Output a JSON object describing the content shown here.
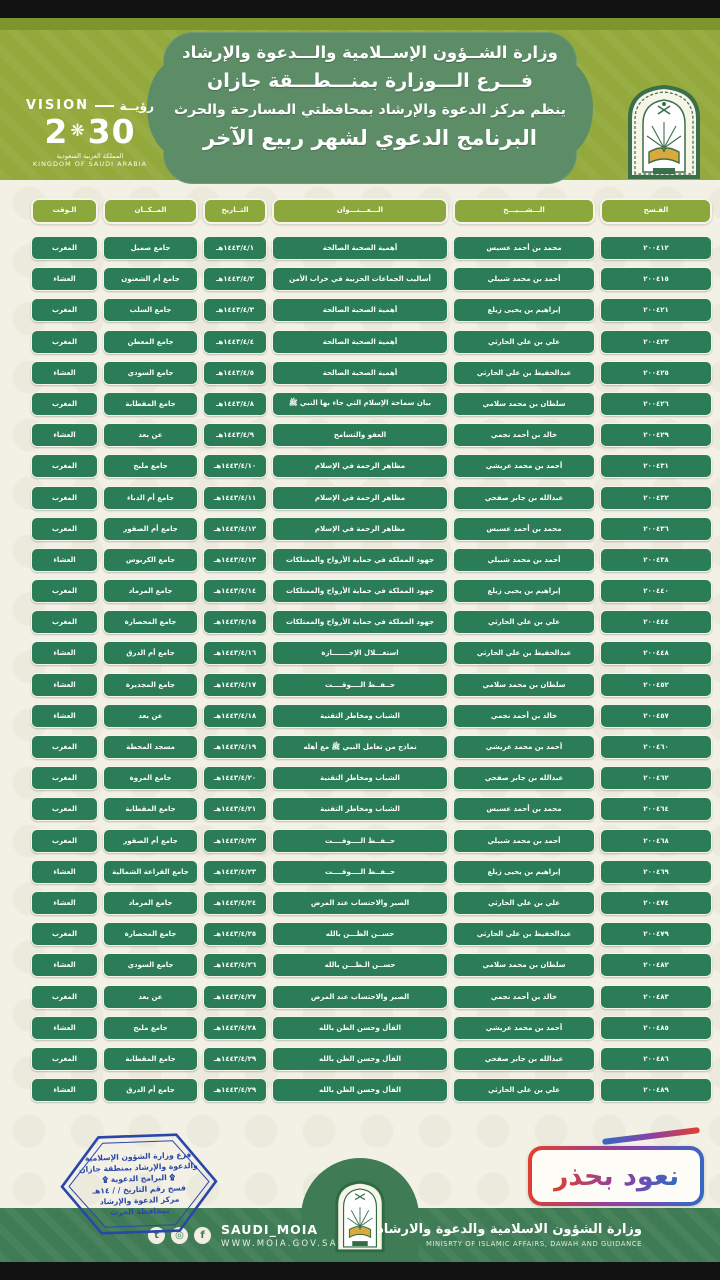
{
  "header": {
    "ministry_line": "وزارة الشــؤون الإســلامية والـــدعوة والإرشاد",
    "branch_line": "فـــرع الـــوزارة بمنـــطـــقة جازان",
    "organizer_line": "ينظم مركز الدعوة والإرشاد بمحافظتي المسارحة والحرث",
    "program_title": "البرنامج الدعوي لشهر ربيع الآخر",
    "vision_logo": {
      "vision_en": "VISION",
      "vision_ar": "رؤيــة",
      "year_left": "2",
      "year_right": "30",
      "star": "❋",
      "kingdom_ar": "المملكة العربية السعودية",
      "kingdom_en": "KINGDOM OF SAUDI ARABIA"
    }
  },
  "table": {
    "columns": [
      {
        "key": "permit",
        "label": "الفـسح"
      },
      {
        "key": "sheikh",
        "label": "الـــشـــيـــخ"
      },
      {
        "key": "topic",
        "label": "الـــعـــنـــوان"
      },
      {
        "key": "date",
        "label": "التــاريخ"
      },
      {
        "key": "place",
        "label": "المــكــان"
      },
      {
        "key": "time",
        "label": "الـوقت"
      }
    ],
    "rows": [
      {
        "permit": "٢٠٠٤١٢",
        "sheikh": "محمد بن أحمد عسيس",
        "topic": "أهمية الصحبة الصالحة",
        "date": "١٤٤٣/٤/١هـ",
        "place": "جامع صميل",
        "time": "المغرب"
      },
      {
        "permit": "٢٠٠٤١٥",
        "sheikh": "أحمد بن محمد شبيلي",
        "topic": "أساليب الجماعات الحزبية في خراب الأمن",
        "date": "١٤٤٣/٤/٢هـ",
        "place": "جامع أم الشعنون",
        "time": "العشاء"
      },
      {
        "permit": "٢٠٠٤٢١",
        "sheikh": "إبراهيم بن يحيى زيلع",
        "topic": "أهمية الصحبة الصالحة",
        "date": "١٤٤٣/٤/٣هـ",
        "place": "جامع السلب",
        "time": "المغرب"
      },
      {
        "permit": "٢٠٠٤٢٣",
        "sheikh": "علي بن علي الحارثي",
        "topic": "أهمية الصحبة الصالحة",
        "date": "١٤٤٣/٤/٤هـ",
        "place": "جامع المعطن",
        "time": "المغرب"
      },
      {
        "permit": "٢٠٠٤٢٥",
        "sheikh": "عبدالحفيظ بن علي الحارثي",
        "topic": "أهمية الصحبة الصالحة",
        "date": "١٤٤٣/٤/٥هـ",
        "place": "جامع السودي",
        "time": "العشاء"
      },
      {
        "permit": "٢٠٠٤٢٦",
        "sheikh": "سلطان بن محمد سلامي",
        "topic": "بيان سماحة الإسلام التي جاء بها النبي ﷺ",
        "date": "١٤٤٣/٤/٨هـ",
        "place": "جامع المقطابة",
        "time": "المغرب"
      },
      {
        "permit": "٢٠٠٤٢٩",
        "sheikh": "خالد بن أحمد نجمي",
        "topic": "العفو والتسامح",
        "date": "١٤٤٣/٤/٩هـ",
        "place": "عن بعد",
        "time": "العشاء"
      },
      {
        "permit": "٢٠٠٤٣١",
        "sheikh": "أحمد بن محمد عريشي",
        "topic": "مظاهر الرحمة في الإسلام",
        "date": "١٤٤٣/٤/١٠هـ",
        "place": "جامع ملبج",
        "time": "المغرب"
      },
      {
        "permit": "٢٠٠٤٣٢",
        "sheikh": "عبدالله بن جابر صفحي",
        "topic": "مظاهر الرحمة في الإسلام",
        "date": "١٤٤٣/٤/١١هـ",
        "place": "جامع أم الدباء",
        "time": "المغرب"
      },
      {
        "permit": "٢٠٠٤٣٦",
        "sheikh": "محمد بن أحمد عسيس",
        "topic": "مظاهر الرحمة في الإسلام",
        "date": "١٤٤٣/٤/١٢هـ",
        "place": "جامع أم الصقور",
        "time": "المغرب"
      },
      {
        "permit": "٢٠٠٤٣٨",
        "sheikh": "أحمد بن محمد شبيلي",
        "topic": "جهود المملكة في حماية الأرواح والممتلكات",
        "date": "١٤٤٣/٤/١٣هـ",
        "place": "جامع الكربوس",
        "time": "العشاء"
      },
      {
        "permit": "٢٠٠٤٤٠",
        "sheikh": "إبراهيم بن يحيى زيلع",
        "topic": "جهود المملكة في حماية الأرواح والممتلكات",
        "date": "١٤٤٣/٤/١٤هـ",
        "place": "جامع المرماد",
        "time": "المغرب"
      },
      {
        "permit": "٢٠٠٤٤٤",
        "sheikh": "علي بن علي الحارثي",
        "topic": "جهود المملكة في حماية الأرواح والممتلكات",
        "date": "١٤٤٣/٤/١٥هـ",
        "place": "جامع المحصارة",
        "time": "المغرب"
      },
      {
        "permit": "٢٠٠٤٤٨",
        "sheikh": "عبدالحفيظ بن علي الحارثي",
        "topic": "استغـــلال الإجـــــــازة",
        "date": "١٤٤٣/٤/١٦هـ",
        "place": "جامع أم الدرق",
        "time": "العشاء"
      },
      {
        "permit": "٢٠٠٤٥٢",
        "sheikh": "سلطان بن محمد سلامي",
        "topic": "حــفــظ الــــوقــــت",
        "date": "١٤٤٣/٤/١٧هـ",
        "place": "جامع المجديرة",
        "time": "العشاء"
      },
      {
        "permit": "٢٠٠٤٥٧",
        "sheikh": "خالد بن أحمد نجمي",
        "topic": "الشباب ومخاطر التقنية",
        "date": "١٤٤٣/٤/١٨هـ",
        "place": "عن بعد",
        "time": "العشاء"
      },
      {
        "permit": "٢٠٠٤٦٠",
        "sheikh": "أحمد بن محمد عريشي",
        "topic": "نماذج من تعامل النبي ﷺ مع أهله",
        "date": "١٤٤٣/٤/١٩هـ",
        "place": "مسجد المحطة",
        "time": "المغرب"
      },
      {
        "permit": "٢٠٠٤٦٢",
        "sheikh": "عبدالله بن جابر صفحي",
        "topic": "الشباب ومخاطر التقنية",
        "date": "١٤٤٣/٤/٢٠هـ",
        "place": "جامع المروة",
        "time": "المغرب"
      },
      {
        "permit": "٢٠٠٤٦٤",
        "sheikh": "محمد بن أحمد عسيس",
        "topic": "الشباب ومخاطر التقنية",
        "date": "١٤٤٣/٤/٢١هـ",
        "place": "جامع المقطابة",
        "time": "المغرب"
      },
      {
        "permit": "٢٠٠٤٦٨",
        "sheikh": "أحمد بن محمد شبيلي",
        "topic": "حــفــظ الــــوقــــت",
        "date": "١٤٤٣/٤/٢٢هـ",
        "place": "جامع أم الصقور",
        "time": "المغرب"
      },
      {
        "permit": "٢٠٠٤٦٩",
        "sheikh": "إبراهيم بن يحيى زيلع",
        "topic": "حــفــظ الــــوقــــت",
        "date": "١٤٤٣/٤/٢٣هـ",
        "place": "جامع القراعة الشمالية",
        "time": "العشاء"
      },
      {
        "permit": "٢٠٠٤٧٤",
        "sheikh": "علي بن علي الحارثي",
        "topic": "الصبر والاحتساب عند المرض",
        "date": "١٤٤٣/٤/٢٤هـ",
        "place": "جامع المرماد",
        "time": "العشاء"
      },
      {
        "permit": "٢٠٠٤٧٩",
        "sheikh": "عبدالحفيظ بن علي الحارثي",
        "topic": "حســن الظـــن بالله",
        "date": "١٤٤٣/٤/٢٥هـ",
        "place": "جامع المحصارة",
        "time": "المغرب"
      },
      {
        "permit": "٢٠٠٤٨٢",
        "sheikh": "سلطان بن محمد سلامي",
        "topic": "حســن الـظـــن بالله",
        "date": "١٤٤٣/٤/٢٦هـ",
        "place": "جامع السودي",
        "time": "العشاء"
      },
      {
        "permit": "٢٠٠٤٨٣",
        "sheikh": "خالد بن أحمد نجمي",
        "topic": "الصبر والاحتساب عند المرض",
        "date": "١٤٤٣/٤/٢٧هـ",
        "place": "عن بعد",
        "time": "المغرب"
      },
      {
        "permit": "٢٠٠٤٨٥",
        "sheikh": "أحمد بن محمد عريشي",
        "topic": "الفأل وحسن الظن بالله",
        "date": "١٤٤٣/٤/٢٨هـ",
        "place": "جامع ملبج",
        "time": "العشاء"
      },
      {
        "permit": "٢٠٠٤٨٦",
        "sheikh": "عبدالله بن جابر صفحي",
        "topic": "الفأل وحسن الظن بالله",
        "date": "١٤٤٣/٤/٢٩هـ",
        "place": "جامع المقطابة",
        "time": "المغرب"
      },
      {
        "permit": "٢٠٠٤٨٩",
        "sheikh": "علي بن علي الحارثي",
        "topic": "الفأل وحسن الظن بالله",
        "date": "١٤٤٣/٤/٢٩هـ",
        "place": "جامع أم الدرق",
        "time": "العشاء"
      }
    ]
  },
  "footer": {
    "stamp_lines": [
      "فرع وزارة الشؤون الإسلامية",
      "والدعوة والإرشاد بمنطقة جازان",
      "۩  البرامج الدعوية  ۩",
      "فسح رقم        التاريخ   /   /  ١٤هـ",
      "مركز الدعوة والإرشاد",
      "بمحافظة الحرث"
    ],
    "badge_text": "نعود بحذر",
    "social_icons": [
      {
        "name": "twitter-icon",
        "glyph": "t"
      },
      {
        "name": "instagram-icon",
        "glyph": "◎"
      },
      {
        "name": "facebook-icon",
        "glyph": "f"
      }
    ],
    "social_handle": "SAUDI_MOIA",
    "website": "WWW.MOIA.GOV.SA",
    "ministry_ar": "وزارة الشؤون الاسلامية والدعوة والارشاد",
    "ministry_en": "MINISRTY OF ISLAMIC AFFAIRS, DAWAH AND GUIDANCE"
  },
  "colors": {
    "page_cream": "#f3f0e6",
    "header_olive": "#93a93c",
    "olive_strip": "#7e942e",
    "blob_green": "#5d8d67",
    "pill_olive": "#8ca73b",
    "cell_green": "#2b7d58",
    "footer_green": "#3f7c55",
    "stamp_blue": "#2946a8",
    "badge_red": "#e1402b",
    "badge_blue": "#2f6cc3",
    "bar_black": "#121212"
  }
}
